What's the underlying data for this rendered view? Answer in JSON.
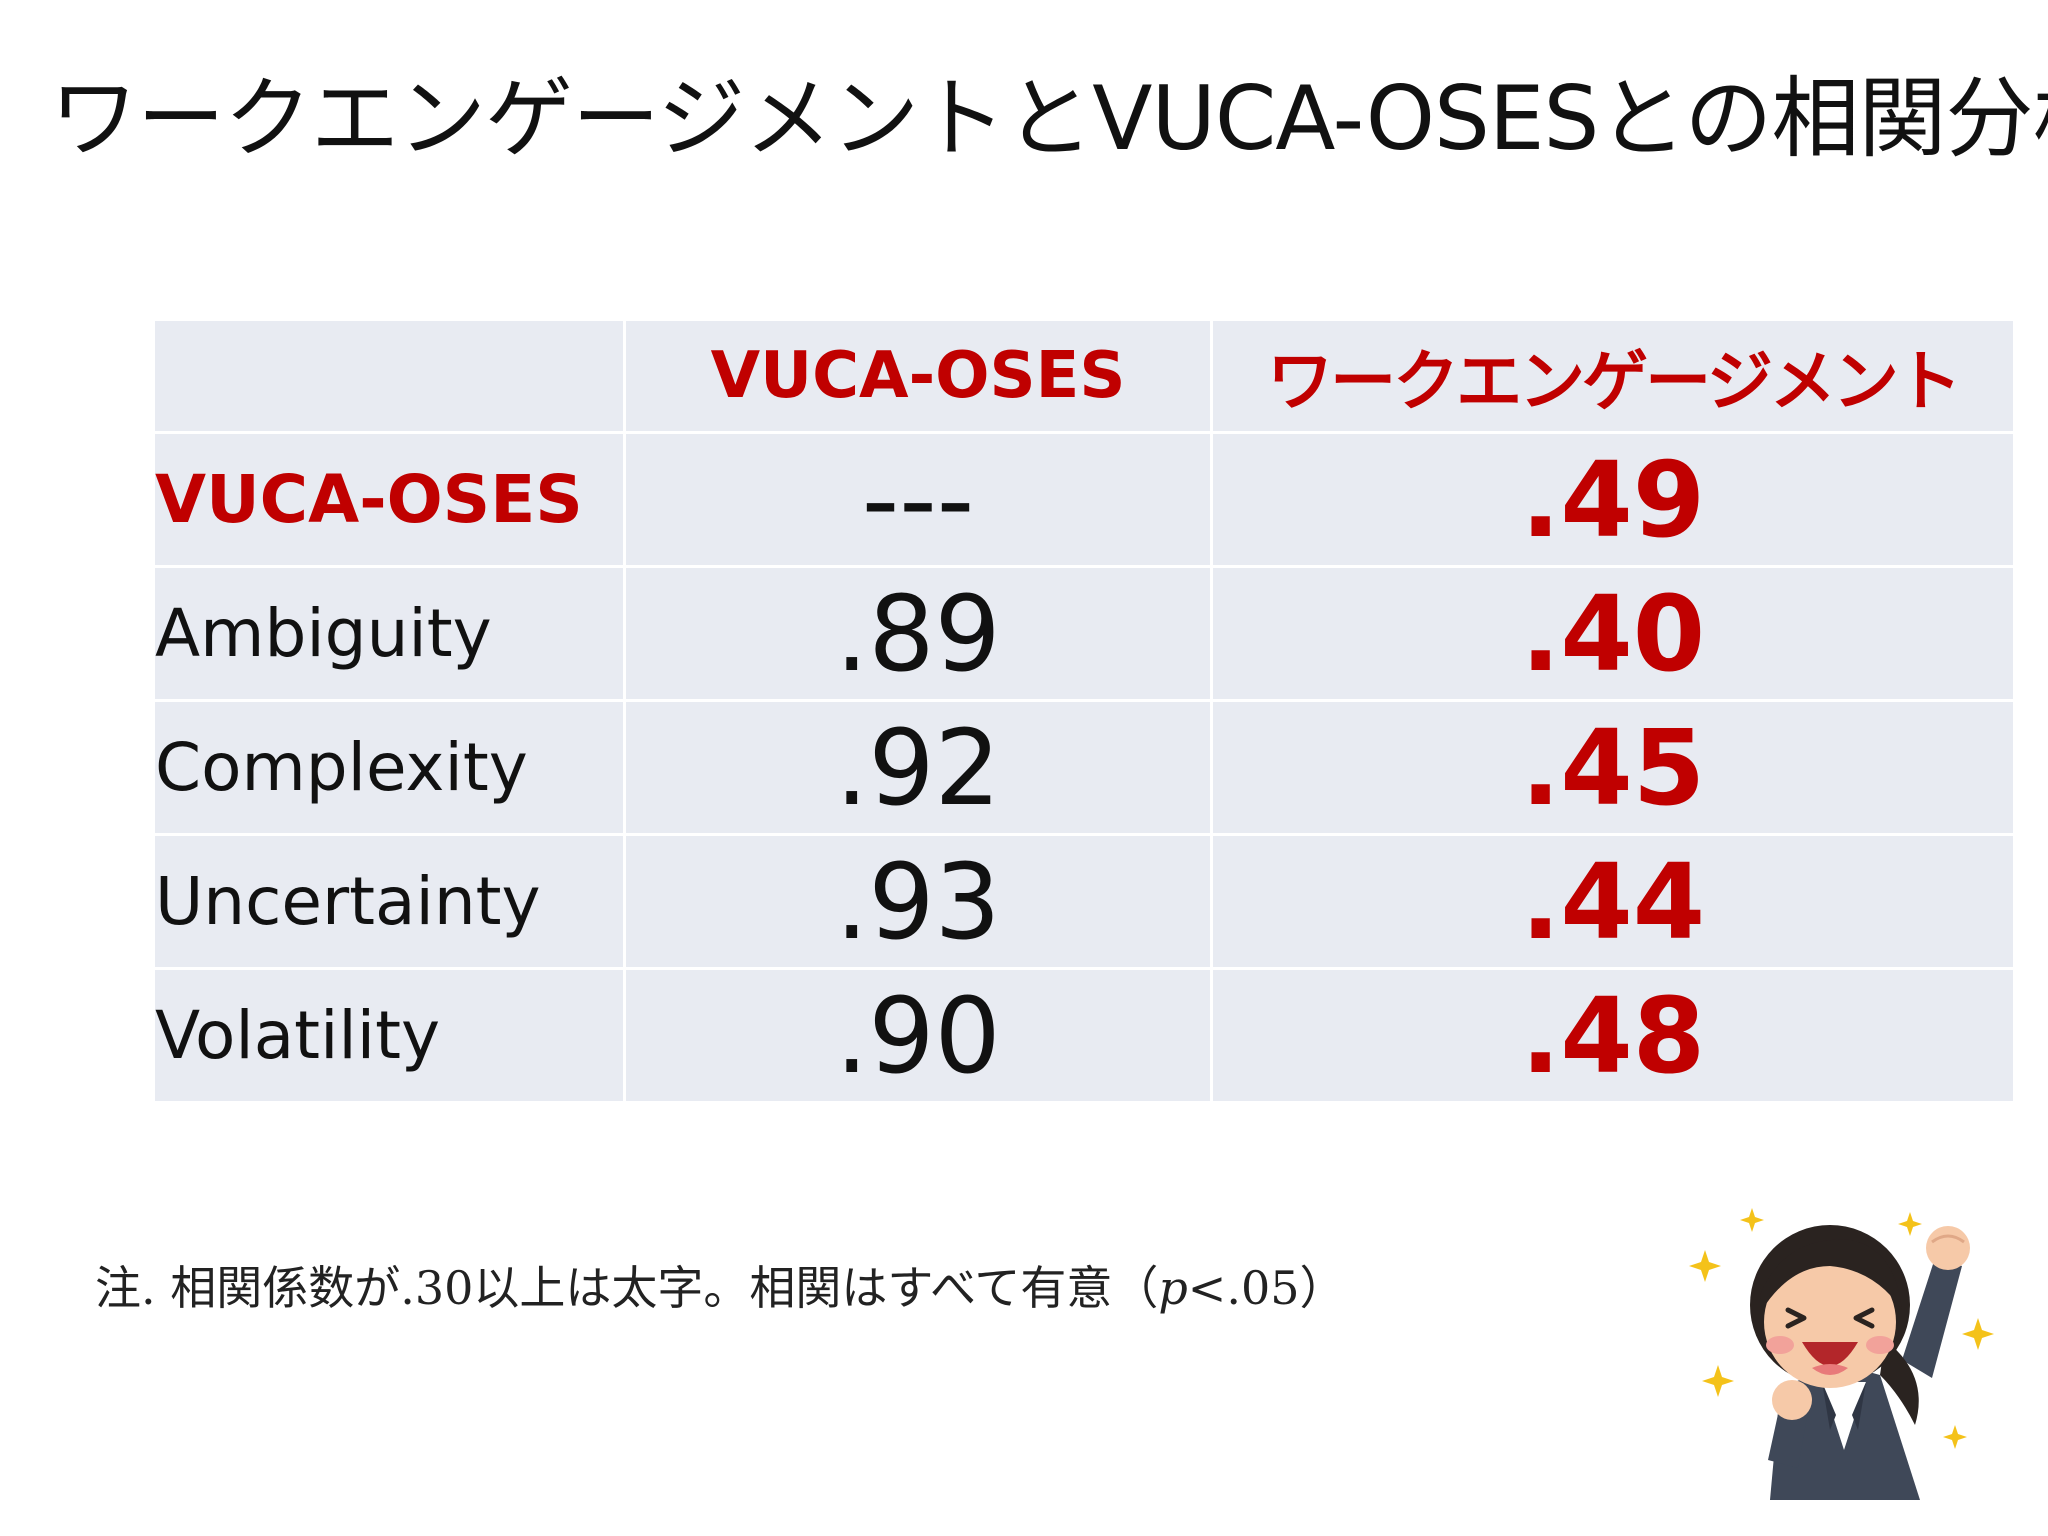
{
  "title": "ワークエンゲージメントとVUCA-OSESとの相関分析",
  "table": {
    "headers": [
      "",
      "VUCA-OSES",
      "ワークエンゲージメント"
    ],
    "rows": [
      {
        "label": "VUCA-OSES",
        "vuca": "---",
        "we": ".49"
      },
      {
        "label": "Ambiguity",
        "vuca": ".89",
        "we": ".40"
      },
      {
        "label": "Complexity",
        "vuca": ".92",
        "we": ".45"
      },
      {
        "label": "Uncertainty",
        "vuca": ".93",
        "we": ".44"
      },
      {
        "label": "Volatility",
        "vuca": ".90",
        "we": ".48"
      }
    ]
  },
  "note": {
    "prefix": "注. 相関係数が.30以上は太字。相関はすべて有意（",
    "p": "p",
    "suffix": "<.05）"
  },
  "colors": {
    "accent": "#c00000",
    "table_bg": "#e8ebf2",
    "text": "#111111"
  },
  "icons": [
    "cheering-businesswoman-illustration",
    "sparkle-star-icon"
  ]
}
